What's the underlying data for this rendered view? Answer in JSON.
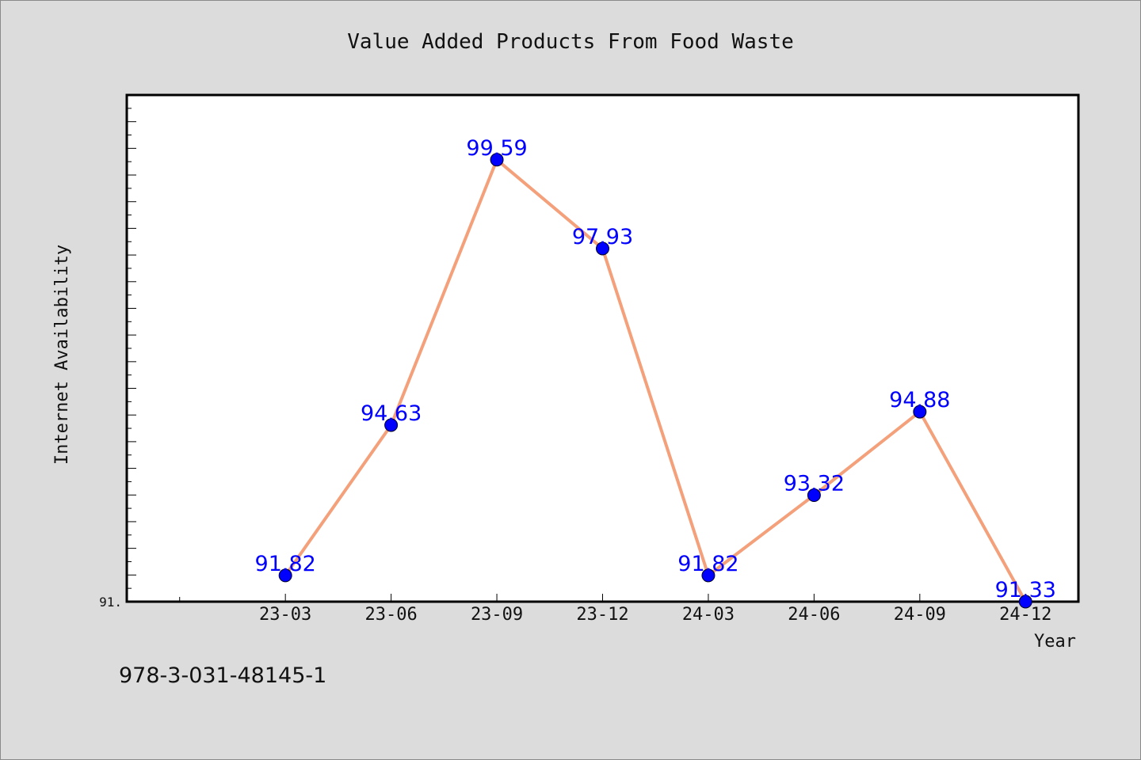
{
  "chart_data": {
    "type": "line",
    "title": "Value Added Products From Food Waste",
    "xlabel": "Year",
    "ylabel": "Internet Availability",
    "categories": [
      "23-03",
      "23-06",
      "23-09",
      "23-12",
      "24-03",
      "24-06",
      "24-09",
      "24-12"
    ],
    "series": [
      {
        "values": [
          91.82,
          94.63,
          99.59,
          97.93,
          91.82,
          93.32,
          94.88,
          91.33
        ],
        "labels": [
          "91.82",
          "94.63",
          "99.59",
          "97.93",
          "91.82",
          "93.32",
          "94.88",
          "91.33"
        ]
      }
    ],
    "ylim": [
      91.33,
      100.8
    ],
    "y_min_tick_label": "91.",
    "x_domain": [
      -1.5,
      7.5
    ],
    "grid": false,
    "line_color": "#f4a07a",
    "marker_color": "#0000ff",
    "label_color": "#0000ff"
  },
  "footer_text": "978-3-031-48145-1"
}
